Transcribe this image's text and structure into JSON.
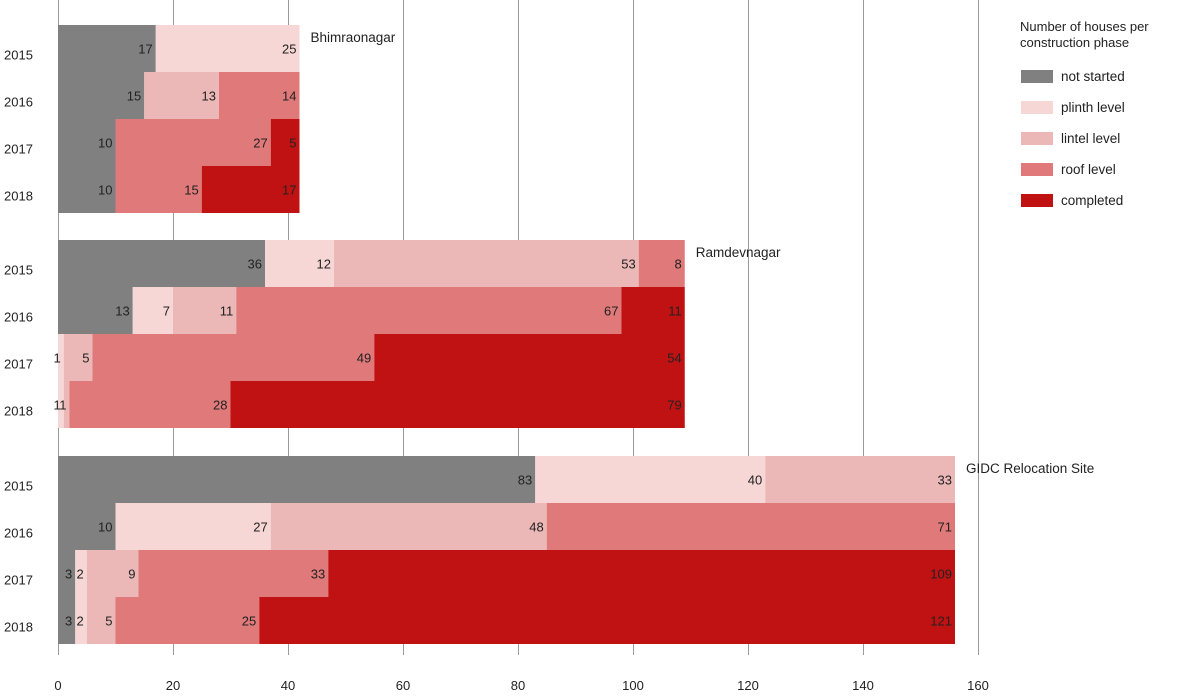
{
  "chart_data": {
    "type": "bar",
    "orientation": "horizontal",
    "stacked": true,
    "xlim": [
      0,
      160
    ],
    "xticks": [
      "0",
      "20",
      "40",
      "60",
      "80",
      "100",
      "120",
      "140",
      "160"
    ],
    "grid": true,
    "legend": {
      "title": "Number of houses per construction phase",
      "title_lines": [
        "Number of houses per",
        "construction phase"
      ],
      "position": "top-right"
    },
    "series": [
      {
        "name": "not started",
        "color": "#808080"
      },
      {
        "name": "plinth level",
        "color": "#f6d7d6"
      },
      {
        "name": "lintel level",
        "color": "#ebb8b7"
      },
      {
        "name": "roof level",
        "color": "#e07979"
      },
      {
        "name": "completed",
        "color": "#c01212"
      }
    ],
    "groups": [
      {
        "site": "Bhimraonagar",
        "rows": [
          {
            "year": "2015",
            "values": [
              17,
              25,
              0,
              0,
              0
            ]
          },
          {
            "year": "2016",
            "values": [
              15,
              0,
              13,
              14,
              0
            ]
          },
          {
            "year": "2017",
            "values": [
              10,
              0,
              0,
              27,
              5
            ]
          },
          {
            "year": "2018",
            "values": [
              10,
              0,
              0,
              15,
              17
            ]
          }
        ]
      },
      {
        "site": "Ramdevnagar",
        "rows": [
          {
            "year": "2015",
            "values": [
              36,
              12,
              53,
              8,
              0
            ]
          },
          {
            "year": "2016",
            "values": [
              13,
              7,
              11,
              67,
              11
            ]
          },
          {
            "year": "2017",
            "values": [
              0,
              1,
              5,
              49,
              54
            ]
          },
          {
            "year": "2018",
            "values": [
              0,
              1,
              1,
              28,
              79
            ]
          }
        ]
      },
      {
        "site": "GIDC Relocation Site",
        "rows": [
          {
            "year": "2015",
            "values": [
              83,
              40,
              33,
              0,
              0
            ]
          },
          {
            "year": "2016",
            "values": [
              10,
              27,
              48,
              71,
              0
            ]
          },
          {
            "year": "2017",
            "values": [
              3,
              2,
              9,
              33,
              109
            ]
          },
          {
            "year": "2018",
            "values": [
              3,
              2,
              5,
              25,
              121
            ]
          }
        ]
      }
    ]
  }
}
